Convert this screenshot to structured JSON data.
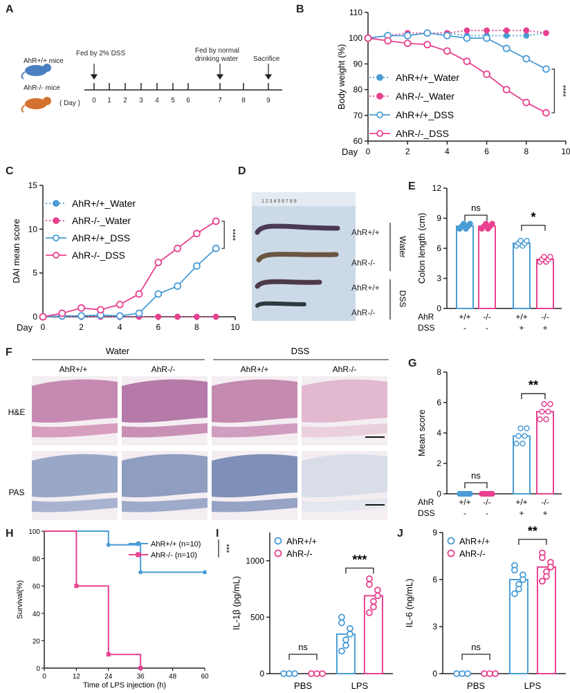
{
  "colors": {
    "blue": "#4a9cd5",
    "pink": "#e8418f",
    "gray": "#333333"
  },
  "panel_letters": {
    "A": "A",
    "B": "B",
    "C": "C",
    "D": "D",
    "E": "E",
    "F": "F",
    "G": "G",
    "H": "H",
    "I": "I",
    "J": "J"
  },
  "panelA": {
    "mouse_wt": "AhR+/+ mice",
    "mouse_ko": "AhR-/- mice",
    "day_label": "( Day )",
    "days": [
      "0",
      "1",
      "2",
      "3",
      "4",
      "5",
      "6",
      "7",
      "8",
      "9"
    ],
    "event_dss": "Fed by 2% DSS",
    "event_water_l1": "Fed by normal",
    "event_water_l2": "drinking water",
    "event_sac": "Sacrifice"
  },
  "panelD": {
    "ruler": "1 2 3 4 5 6 7 8 9",
    "labels": [
      "AhR+/+",
      "AhR-/-",
      "AhR+/+",
      "AhR-/-"
    ],
    "groups": [
      "Water",
      "DSS"
    ]
  },
  "panelF": {
    "groups": [
      "Water",
      "DSS"
    ],
    "cols": [
      "AhR+/+",
      "AhR-/-",
      "AhR+/+",
      "AhR-/-"
    ],
    "rows": [
      "H&E",
      "PAS"
    ]
  },
  "chart_data": [
    {
      "id": "B",
      "type": "line",
      "xlabel": "Day",
      "ylabel": "Body weight (%)",
      "xlim": [
        0,
        10
      ],
      "ylim": [
        60,
        110
      ],
      "xticks": [
        "0",
        "2",
        "4",
        "6",
        "8",
        "10"
      ],
      "yticks": [
        "60",
        "70",
        "80",
        "90",
        "100",
        "110"
      ],
      "x": [
        0,
        1,
        2,
        3,
        4,
        5,
        6,
        7,
        8,
        9
      ],
      "series": [
        {
          "name": "AhR+/+_Water",
          "values": [
            100,
            101,
            101,
            102,
            102,
            101,
            101,
            101,
            101,
            102
          ]
        },
        {
          "name": "AhR-/-_Water",
          "values": [
            100,
            101,
            102,
            102,
            102,
            103,
            103,
            103,
            103,
            102
          ]
        },
        {
          "name": "AhR+/+_DSS",
          "values": [
            100,
            101,
            101,
            102,
            101,
            100,
            100,
            96,
            92,
            88
          ]
        },
        {
          "name": "AhR-/-_DSS",
          "values": [
            100,
            99,
            98,
            97.5,
            95,
            91,
            86,
            80,
            75,
            71
          ]
        }
      ],
      "significance": "****"
    },
    {
      "id": "C",
      "type": "line",
      "xlabel": "Day",
      "ylabel": "DAI mean score",
      "xlim": [
        0,
        10
      ],
      "ylim": [
        0,
        15
      ],
      "xticks": [
        "0",
        "2",
        "4",
        "6",
        "8",
        "10"
      ],
      "yticks": [
        "0",
        "5",
        "10",
        "15"
      ],
      "x": [
        0,
        1,
        2,
        3,
        4,
        5,
        6,
        7,
        8,
        9
      ],
      "series": [
        {
          "name": "AhR+/+_Water",
          "values": [
            0,
            0,
            0,
            0,
            0,
            0,
            0,
            0,
            0,
            0
          ]
        },
        {
          "name": "AhR-/-_Water",
          "values": [
            0,
            0,
            0,
            0,
            0,
            0,
            0,
            0,
            0,
            0
          ]
        },
        {
          "name": "AhR+/+_DSS",
          "values": [
            0,
            0.1,
            0.1,
            0.2,
            0.1,
            0.4,
            2.6,
            3.5,
            5.8,
            7.8
          ]
        },
        {
          "name": "AhR-/-_DSS",
          "values": [
            0,
            0.4,
            1.0,
            0.8,
            1.4,
            2.6,
            6.2,
            7.8,
            9.5,
            10.9
          ]
        }
      ],
      "significance": "****"
    },
    {
      "id": "E",
      "type": "bar",
      "ylabel": "Colon length (cm)",
      "ylim": [
        0,
        12
      ],
      "yticks": [
        "0",
        "3",
        "6",
        "9",
        "12"
      ],
      "row_labels": [
        "AhR",
        "DSS"
      ],
      "categories_ahr": [
        "+/+",
        "-/-",
        "+/+",
        "-/-"
      ],
      "categories_dss": [
        "-",
        "-",
        "+",
        "+"
      ],
      "values": [
        8.2,
        8.2,
        6.5,
        4.9
      ],
      "sig_left": "ns",
      "sig_right": "*"
    },
    {
      "id": "G",
      "type": "bar",
      "ylabel": "Mean score",
      "ylim": [
        0,
        8
      ],
      "yticks": [
        "0",
        "2",
        "4",
        "6",
        "8"
      ],
      "row_labels": [
        "AhR",
        "DSS"
      ],
      "categories_ahr": [
        "+/+",
        "-/-",
        "+/+",
        "-/-"
      ],
      "categories_dss": [
        "-",
        "-",
        "+",
        "+"
      ],
      "values": [
        0,
        0,
        3.8,
        5.4
      ],
      "sig_left": "ns",
      "sig_right": "**"
    },
    {
      "id": "H",
      "type": "line",
      "xlabel": "Time of LPS injection (h)",
      "ylabel": "Survival(%)",
      "xlim": [
        0,
        60
      ],
      "ylim": [
        0,
        100
      ],
      "xticks": [
        "0",
        "12",
        "24",
        "36",
        "48",
        "60"
      ],
      "yticks": [
        "0",
        "20",
        "40",
        "60",
        "80",
        "100"
      ],
      "series": [
        {
          "name": "AhR+/+ (n=10)",
          "x": [
            0,
            24,
            24,
            36,
            36,
            60
          ],
          "values": [
            100,
            100,
            90,
            90,
            70,
            70
          ]
        },
        {
          "name": "AhR-/- (n=10)",
          "x": [
            0,
            12,
            12,
            24,
            24,
            36,
            36
          ],
          "values": [
            100,
            100,
            60,
            60,
            10,
            10,
            0
          ]
        }
      ],
      "significance": "***"
    },
    {
      "id": "I",
      "type": "bar",
      "ylabel": "IL-1β (pg/mL)",
      "ylim": [
        0,
        1250
      ],
      "yticks": [
        "0",
        "500",
        "1000"
      ],
      "categories": [
        "PBS",
        "LPS"
      ],
      "series": [
        {
          "name": "AhR+/+",
          "values": [
            0,
            350
          ]
        },
        {
          "name": "AhR-/-",
          "values": [
            0,
            690
          ]
        }
      ],
      "sig_left": "ns",
      "sig_right": "***"
    },
    {
      "id": "J",
      "type": "bar",
      "ylabel": "IL-6 (ng/mL)",
      "ylim": [
        0,
        9
      ],
      "yticks": [
        "0",
        "3",
        "6",
        "9"
      ],
      "categories": [
        "PBS",
        "LPS"
      ],
      "series": [
        {
          "name": "AhR+/+",
          "values": [
            0,
            6.0
          ]
        },
        {
          "name": "AhR-/-",
          "values": [
            0,
            6.8
          ]
        }
      ],
      "sig_left": "ns",
      "sig_right": "**"
    }
  ]
}
